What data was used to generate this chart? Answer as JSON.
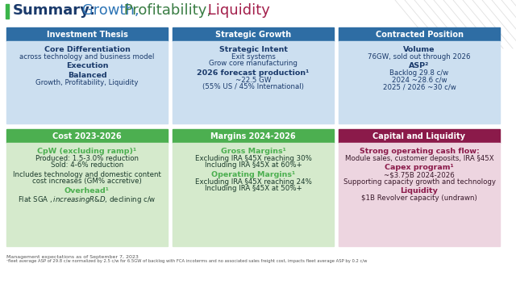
{
  "title_summary": "Summary:",
  "green_bar_color": "#3bb54a",
  "title_word_colors": [
    {
      "text": "Summary:",
      "color": "#1a3a6b",
      "bold": true
    },
    {
      "text": " Growth,",
      "color": "#2e75b6",
      "bold": false
    },
    {
      "text": " Profitability,",
      "color": "#3a7d44",
      "bold": false
    },
    {
      "text": " Liquidity",
      "color": "#a31f4b",
      "bold": false
    }
  ],
  "row1": [
    {
      "header": "Investment Thesis",
      "header_bg": "#2e6da4",
      "body_bg": "#ccdff0",
      "lines": [
        {
          "text": "Core Differentiation",
          "bold": true,
          "color": "#1a3a6b",
          "size": 6.8
        },
        {
          "text": "across technology and business model",
          "bold": false,
          "color": "#1a3a6b",
          "size": 6.2
        },
        {
          "text": "",
          "size": 3
        },
        {
          "text": "Execution",
          "bold": true,
          "color": "#1a3a6b",
          "size": 6.8
        },
        {
          "text": "",
          "size": 3
        },
        {
          "text": "Balanced",
          "bold": true,
          "color": "#1a3a6b",
          "size": 6.8
        },
        {
          "text": "Growth, Profitability, Liquidity",
          "bold": false,
          "color": "#1a3a6b",
          "size": 6.2
        }
      ]
    },
    {
      "header": "Strategic Growth",
      "header_bg": "#2e6da4",
      "body_bg": "#ccdff0",
      "lines": [
        {
          "text": "Strategic Intent",
          "bold": true,
          "color": "#1a3a6b",
          "size": 6.8
        },
        {
          "text": "Exit systems",
          "bold": false,
          "color": "#1a3a6b",
          "size": 6.2
        },
        {
          "text": "Grow core manufacturing",
          "bold": false,
          "color": "#1a3a6b",
          "size": 6.2
        },
        {
          "text": "",
          "size": 3
        },
        {
          "text": "2026 forecast production¹",
          "bold": true,
          "color": "#1a3a6b",
          "size": 6.8
        },
        {
          "text": "~22.5 GW",
          "bold": false,
          "color": "#1a3a6b",
          "size": 6.2
        },
        {
          "text": "(55% US / 45% International)",
          "bold": false,
          "color": "#1a3a6b",
          "size": 6.2
        }
      ]
    },
    {
      "header": "Contracted Position",
      "header_bg": "#2e6da4",
      "body_bg": "#ccdff0",
      "lines": [
        {
          "text": "Volume",
          "bold": true,
          "color": "#1a3a6b",
          "size": 6.8
        },
        {
          "text": "76GW, sold out through 2026",
          "bold": false,
          "color": "#1a3a6b",
          "size": 6.2
        },
        {
          "text": "",
          "size": 3
        },
        {
          "text": "ASP²",
          "bold": true,
          "color": "#1a3a6b",
          "size": 6.8
        },
        {
          "text": "Backlog 29.8 c/w",
          "bold": false,
          "color": "#1a3a6b",
          "size": 6.2
        },
        {
          "text": "2024 ~28.6 c/w",
          "bold": false,
          "color": "#1a3a6b",
          "size": 6.2
        },
        {
          "text": "2025 / 2026 ~30 c/w",
          "bold": false,
          "color": "#1a3a6b",
          "size": 6.2
        }
      ]
    }
  ],
  "row2": [
    {
      "header": "Cost 2023-2026",
      "header_bg": "#4caf50",
      "body_bg": "#d5eacc",
      "lines": [
        {
          "text": "CpW (excluding ramp)¹",
          "bold": true,
          "color": "#4caf50",
          "size": 6.8
        },
        {
          "text": "Produced: 1.5-3.0% reduction",
          "bold": false,
          "color": "#1a3a2b",
          "size": 6.2
        },
        {
          "text": "Sold: 4-6% reduction",
          "bold": false,
          "color": "#1a3a2b",
          "size": 6.2
        },
        {
          "text": "",
          "size": 3
        },
        {
          "text": "Includes technology and domestic content",
          "bold": false,
          "color": "#1a3a2b",
          "size": 6.2
        },
        {
          "text": "cost increases (GM% accretive)",
          "bold": false,
          "color": "#1a3a2b",
          "size": 6.2
        },
        {
          "text": "",
          "size": 3
        },
        {
          "text": "Overhead¹",
          "bold": true,
          "color": "#4caf50",
          "size": 6.8
        },
        {
          "text": "Flat SGA $, increasing R&D $, declining c/w",
          "bold": false,
          "color": "#1a3a2b",
          "size": 6.2
        }
      ]
    },
    {
      "header": "Margins 2024-2026",
      "header_bg": "#4caf50",
      "body_bg": "#d5eacc",
      "lines": [
        {
          "text": "Gross Margins¹",
          "bold": true,
          "color": "#4caf50",
          "size": 6.8
        },
        {
          "text": "Excluding IRA §45X reaching 30%",
          "bold": false,
          "color": "#1a3a2b",
          "size": 6.2
        },
        {
          "text": "Including IRA §45X at 60%+",
          "bold": false,
          "color": "#1a3a2b",
          "size": 6.2
        },
        {
          "text": "",
          "size": 3
        },
        {
          "text": "Operating Margins¹",
          "bold": true,
          "color": "#4caf50",
          "size": 6.8
        },
        {
          "text": "Excluding IRA §45X reaching 24%",
          "bold": false,
          "color": "#1a3a2b",
          "size": 6.2
        },
        {
          "text": "Including IRA §45X at 50%+",
          "bold": false,
          "color": "#1a3a2b",
          "size": 6.2
        }
      ]
    },
    {
      "header": "Capital and Liquidity",
      "header_bg": "#8b1a4a",
      "body_bg": "#edd5e0",
      "lines": [
        {
          "text": "Strong operating cash flow:",
          "bold": true,
          "color": "#8b1a4a",
          "size": 6.8
        },
        {
          "text": "Module sales, customer deposits, IRA §45X",
          "bold": false,
          "color": "#3a1a2b",
          "size": 6.2
        },
        {
          "text": "",
          "size": 3
        },
        {
          "text": "Capex program¹",
          "bold": true,
          "color": "#8b1a4a",
          "size": 6.8
        },
        {
          "text": "~$3.75B 2024-2026",
          "bold": false,
          "color": "#3a1a2b",
          "size": 6.2
        },
        {
          "text": "Supporting capacity growth and technology",
          "bold": false,
          "color": "#3a1a2b",
          "size": 6.2
        },
        {
          "text": "",
          "size": 3
        },
        {
          "text": "Liquidity",
          "bold": true,
          "color": "#8b1a4a",
          "size": 6.8
        },
        {
          "text": "$1B Revolver capacity (undrawn)",
          "bold": false,
          "color": "#3a1a2b",
          "size": 6.2
        }
      ]
    }
  ],
  "footnotes": [
    "Management expectations as of September 7, 2023",
    "¹fleet average ASP of 29.8 c/w normalized by 2.5 c/w for 6.5GW of backlog with FCA incoterms and no associated sales freight cost, impacts fleet average ASP by 0.2 c/w"
  ]
}
